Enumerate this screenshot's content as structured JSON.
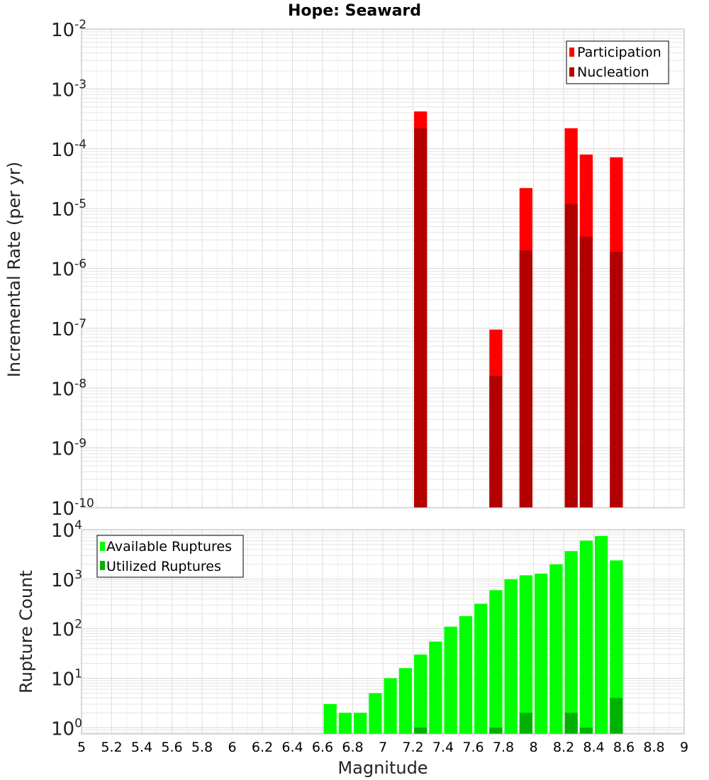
{
  "chart_data": [
    {
      "type": "bar",
      "title": "Hope: Seaward",
      "xlabel": "",
      "ylabel": "Incremental Rate (per yr)",
      "yscale": "log",
      "xlim": [
        5,
        9
      ],
      "ylim": [
        1e-10,
        0.01
      ],
      "bin_width": 0.1,
      "grid": true,
      "legend_position": "top-right",
      "y_tick_labels": [
        {
          "base": "10",
          "exp": "-10",
          "value": 1e-10
        },
        {
          "base": "10",
          "exp": "-9",
          "value": 1e-09
        },
        {
          "base": "10",
          "exp": "-8",
          "value": 1e-08
        },
        {
          "base": "10",
          "exp": "-7",
          "value": 1e-07
        },
        {
          "base": "10",
          "exp": "-6",
          "value": 1e-06
        },
        {
          "base": "10",
          "exp": "-5",
          "value": 1e-05
        },
        {
          "base": "10",
          "exp": "-4",
          "value": 0.0001
        },
        {
          "base": "10",
          "exp": "-3",
          "value": 0.001
        },
        {
          "base": "10",
          "exp": "-2",
          "value": 0.01
        }
      ],
      "series": [
        {
          "name": "Participation",
          "color": "#ff0000",
          "x": [
            7.25,
            7.75,
            7.95,
            8.25,
            8.35,
            8.55
          ],
          "values": [
            0.00042,
            9.5e-08,
            2.2e-05,
            0.00022,
            8e-05,
            7.2e-05
          ]
        },
        {
          "name": "Nucleation",
          "color": "#b20000",
          "x": [
            7.25,
            7.75,
            7.95,
            8.25,
            8.35,
            8.55
          ],
          "values": [
            0.00022,
            1.6e-08,
            2e-06,
            1.2e-05,
            3.4e-06,
            1.9e-06
          ]
        }
      ]
    },
    {
      "type": "bar",
      "title": "",
      "xlabel": "Magnitude",
      "ylabel": "Rupture Count",
      "yscale": "log",
      "xlim": [
        5,
        9
      ],
      "ylim": [
        0.75,
        10000
      ],
      "bin_width": 0.1,
      "grid": true,
      "legend_position": "top-left",
      "x_tick_labels": [
        "5",
        "5.2",
        "5.4",
        "5.6",
        "5.8",
        "6",
        "6.2",
        "6.4",
        "6.6",
        "6.8",
        "7",
        "7.2",
        "7.4",
        "7.6",
        "7.8",
        "8",
        "8.2",
        "8.4",
        "8.6",
        "8.8",
        "9"
      ],
      "y_tick_labels": [
        {
          "base": "10",
          "exp": "0",
          "value": 1
        },
        {
          "base": "10",
          "exp": "1",
          "value": 10
        },
        {
          "base": "10",
          "exp": "2",
          "value": 100
        },
        {
          "base": "10",
          "exp": "3",
          "value": 1000
        },
        {
          "base": "10",
          "exp": "4",
          "value": 10000
        }
      ],
      "series": [
        {
          "name": "Available Ruptures",
          "color": "#00ff00",
          "x": [
            6.65,
            6.75,
            6.85,
            6.95,
            7.05,
            7.15,
            7.25,
            7.35,
            7.45,
            7.55,
            7.65,
            7.75,
            7.85,
            7.95,
            8.05,
            8.15,
            8.25,
            8.35,
            8.45,
            8.55
          ],
          "values": [
            3,
            2,
            2,
            5,
            10,
            16,
            30,
            55,
            110,
            180,
            320,
            600,
            1000,
            1200,
            1300,
            2000,
            3700,
            6000,
            7500,
            2400
          ]
        },
        {
          "name": "Utilized Ruptures",
          "color": "#00b200",
          "x": [
            7.25,
            7.75,
            7.95,
            8.25,
            8.35,
            8.55
          ],
          "values": [
            1,
            1,
            2,
            2,
            1,
            4
          ]
        }
      ]
    }
  ]
}
